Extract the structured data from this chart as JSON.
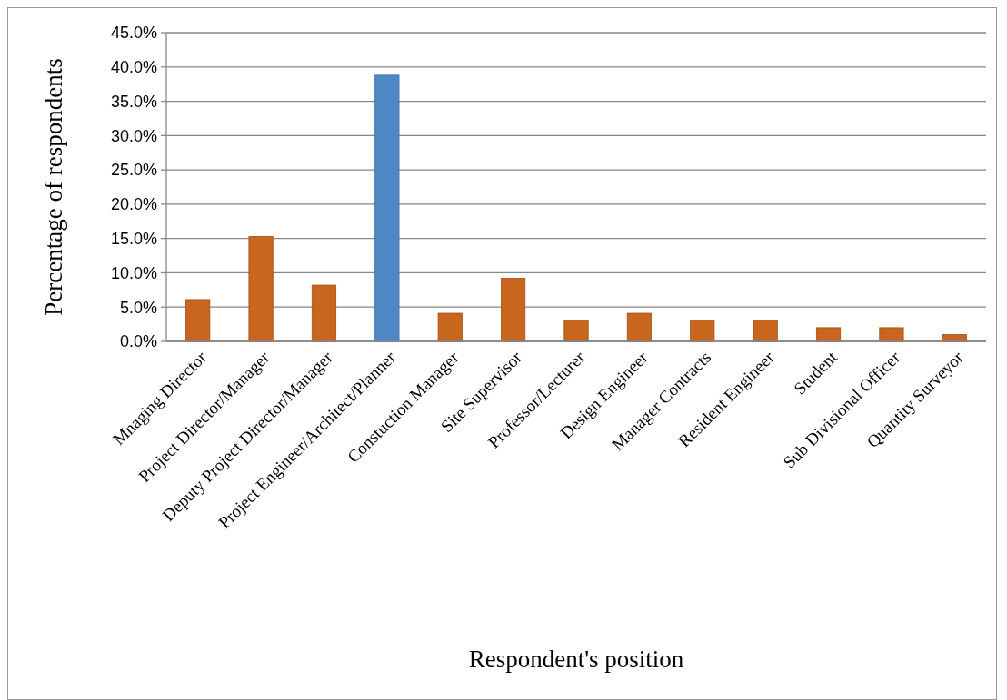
{
  "chart_data": {
    "type": "bar",
    "xlabel": "Respondent's position",
    "ylabel": "Percentage of respondents",
    "categories": [
      "Mnaging Director",
      "Project Director/Manager",
      "Deputy Project Director/Manager",
      "Project Engineer/Architect/Planner",
      "Constuction Manager",
      "Site Supervisor",
      "Professor/Lecturer",
      "Design Engineer",
      "Manager Contracts",
      "Resident Engineer",
      "Student",
      "Sub Divisional Officer",
      "Quantity Surveyor"
    ],
    "values": [
      6.1,
      15.3,
      8.2,
      38.8,
      4.1,
      9.2,
      3.1,
      4.1,
      3.1,
      3.1,
      2.0,
      2.0,
      1.0
    ],
    "colors": [
      "#c8661e",
      "#c8661e",
      "#c8661e",
      "#4f86c6",
      "#c8661e",
      "#c8661e",
      "#c8661e",
      "#c8661e",
      "#c8661e",
      "#c8661e",
      "#c8661e",
      "#c8661e",
      "#c8661e"
    ],
    "ylim": [
      0,
      45
    ],
    "yticks": [
      {
        "value": 0,
        "label": "0.0%"
      },
      {
        "value": 5,
        "label": "5.0%"
      },
      {
        "value": 10,
        "label": "10.0%"
      },
      {
        "value": 15,
        "label": "15.0%"
      },
      {
        "value": 20,
        "label": "20.0%"
      },
      {
        "value": 25,
        "label": "25.0%"
      },
      {
        "value": 30,
        "label": "30.0%"
      },
      {
        "value": 35,
        "label": "35.0%"
      },
      {
        "value": 40,
        "label": "40.0%"
      },
      {
        "value": 45,
        "label": "45.0%"
      }
    ],
    "grid": "y"
  }
}
